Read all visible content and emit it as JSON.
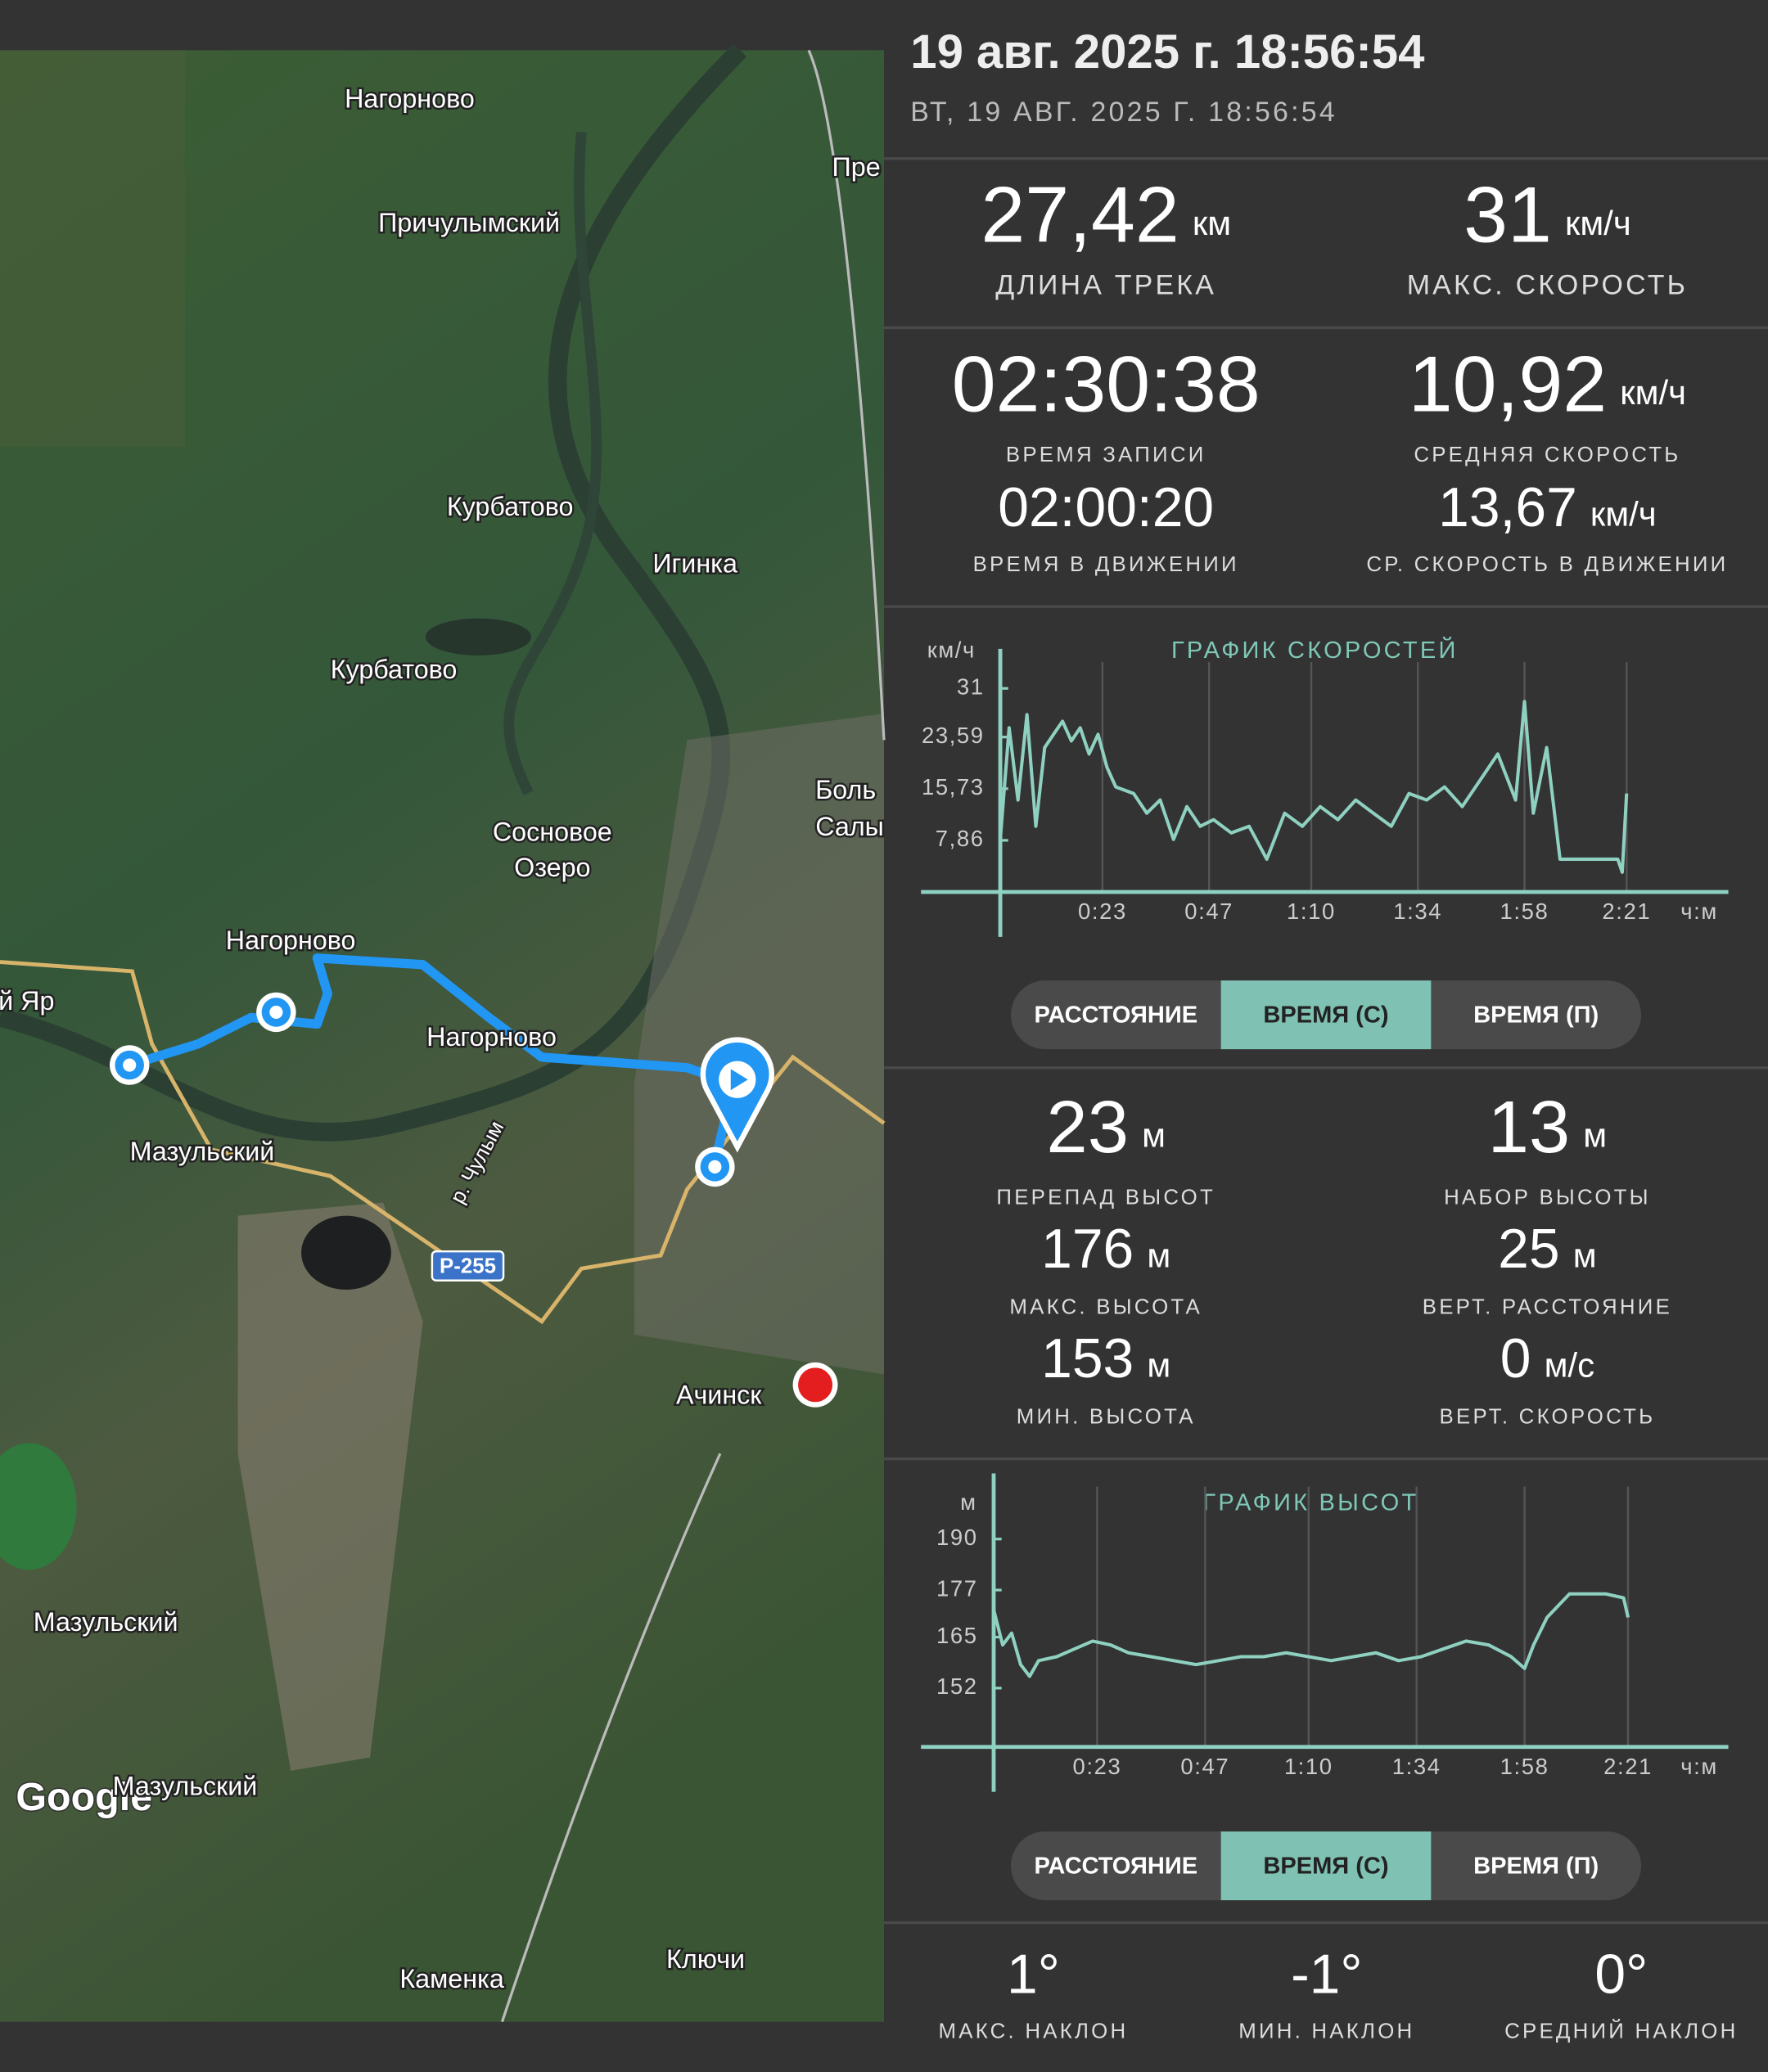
{
  "header": {
    "title": "19 авг. 2025 г. 18:56:54",
    "subtitle": "ВТ, 19 АВГ. 2025 Г. 18:56:54"
  },
  "map": {
    "labels": [
      "Нагорново",
      "Пре",
      "Причулымский",
      "Курбатово",
      "Игинка",
      "Курбатово",
      "Боль",
      "Салы",
      "Сосновое",
      "Озеро",
      "Нагорново",
      "й Яр",
      "Нагорново",
      "Мазульский",
      "р. Чулым",
      "Ачинск",
      "Мазульский",
      "Мазульский",
      "Каменка",
      "Ключи"
    ],
    "road_label": "Р-255",
    "attribution": "Google"
  },
  "stats_top": [
    {
      "value": "27,42",
      "unit": "км",
      "label": "ДЛИНА ТРЕКА"
    },
    {
      "value": "31",
      "unit": "км/ч",
      "label": "МАКС. СКОРОСТЬ"
    }
  ],
  "stats_time": [
    {
      "value": "02:30:38",
      "label": "ВРЕМЯ ЗАПИСИ"
    },
    {
      "value": "10,92",
      "unit": "км/ч",
      "label": "СРЕДНЯЯ СКОРОСТЬ"
    },
    {
      "value": "02:00:20",
      "label": "ВРЕМЯ В ДВИЖЕНИИ"
    },
    {
      "value": "13,67",
      "unit": "км/ч",
      "label": "СР. СКОРОСТЬ В ДВИЖЕНИИ"
    }
  ],
  "speed_chart": {
    "type": "line",
    "title": "ГРАФИК СКОРОСТЕЙ",
    "y_unit": "км/ч",
    "x_unit": "ч:м",
    "color": "#8fd1c1",
    "xlim": [
      0,
      163
    ],
    "ylim": [
      0,
      33
    ],
    "xticks": [
      {
        "value": 23,
        "label": "0:23"
      },
      {
        "value": 47,
        "label": "0:47"
      },
      {
        "value": 70,
        "label": "1:10"
      },
      {
        "value": 94,
        "label": "1:34"
      },
      {
        "value": 118,
        "label": "1:58"
      },
      {
        "value": 141,
        "label": "2:21"
      }
    ],
    "yticks": [
      {
        "value": 7.86,
        "label": "7,86"
      },
      {
        "value": 15.73,
        "label": "15,73"
      },
      {
        "value": 23.59,
        "label": "23,59"
      },
      31
    ],
    "x": [
      0,
      2,
      4,
      6,
      8,
      10,
      12,
      14,
      16,
      18,
      20,
      22,
      24,
      26,
      30,
      33,
      36,
      39,
      42,
      45,
      48,
      52,
      56,
      60,
      64,
      68,
      72,
      76,
      80,
      84,
      88,
      92,
      96,
      100,
      104,
      108,
      112,
      116,
      118,
      120,
      123,
      126,
      139,
      140,
      141
    ],
    "values": [
      8,
      25,
      14,
      27,
      10,
      22,
      24,
      26,
      23,
      25,
      21,
      24,
      19,
      16,
      15,
      12,
      14,
      8,
      13,
      10,
      11,
      9,
      10,
      5,
      12,
      10,
      13,
      11,
      14,
      12,
      10,
      15,
      14,
      16,
      13,
      17,
      21,
      14,
      29,
      12,
      22,
      5,
      5,
      3,
      15
    ]
  },
  "speed_buttons": {
    "labels": [
      "РАССТОЯНИЕ",
      "ВРЕМЯ (С)",
      "ВРЕМЯ (П)"
    ],
    "active": 1
  },
  "stats_elevation": [
    {
      "value": "23",
      "unit": "м",
      "label": "ПЕРЕПАД ВЫСОТ"
    },
    {
      "value": "13",
      "unit": "м",
      "label": "НАБОР ВЫСОТЫ"
    },
    {
      "value": "176",
      "unit": "м",
      "label": "МАКС. ВЫСОТА"
    },
    {
      "value": "25",
      "unit": "м",
      "label": "ВЕРТ. РАССТОЯНИЕ"
    },
    {
      "value": "153",
      "unit": "м",
      "label": "МИН. ВЫСОТА"
    },
    {
      "value": "0",
      "unit": "м/с",
      "label": "ВЕРТ. СКОРОСТЬ"
    }
  ],
  "elevation_chart": {
    "type": "line",
    "title": "ГРАФИК ВЫСОТ",
    "y_unit": "м",
    "x_unit": "ч:м",
    "color": "#8fd1c1",
    "xlim": [
      0,
      163
    ],
    "ylim": [
      137,
      200
    ],
    "xticks": [
      {
        "value": 23,
        "label": "0:23"
      },
      {
        "value": 47,
        "label": "0:47"
      },
      {
        "value": 70,
        "label": "1:10"
      },
      {
        "value": 94,
        "label": "1:34"
      },
      {
        "value": 118,
        "label": "1:58"
      },
      {
        "value": 141,
        "label": "2:21"
      }
    ],
    "yticks": [
      152,
      165,
      177,
      190
    ],
    "x": [
      0,
      2,
      4,
      6,
      8,
      10,
      14,
      18,
      22,
      26,
      30,
      35,
      40,
      45,
      50,
      55,
      60,
      65,
      70,
      75,
      80,
      85,
      90,
      95,
      100,
      105,
      110,
      115,
      118,
      120,
      123,
      128,
      132,
      136,
      140,
      141
    ],
    "values": [
      172,
      163,
      166,
      158,
      155,
      159,
      160,
      162,
      164,
      163,
      161,
      160,
      159,
      158,
      159,
      160,
      160,
      161,
      160,
      159,
      160,
      161,
      159,
      160,
      162,
      164,
      163,
      160,
      157,
      163,
      170,
      176,
      176,
      176,
      175,
      170
    ]
  },
  "elevation_buttons": {
    "labels": [
      "РАССТОЯНИЕ",
      "ВРЕМЯ (С)",
      "ВРЕМЯ (П)"
    ],
    "active": 1
  },
  "stats_slope": [
    {
      "value": "1°",
      "label": "МАКС. НАКЛОН"
    },
    {
      "value": "-1°",
      "label": "МИН. НАКЛОН"
    },
    {
      "value": "0°",
      "label": "СРЕДНИЙ НАКЛОН"
    }
  ]
}
